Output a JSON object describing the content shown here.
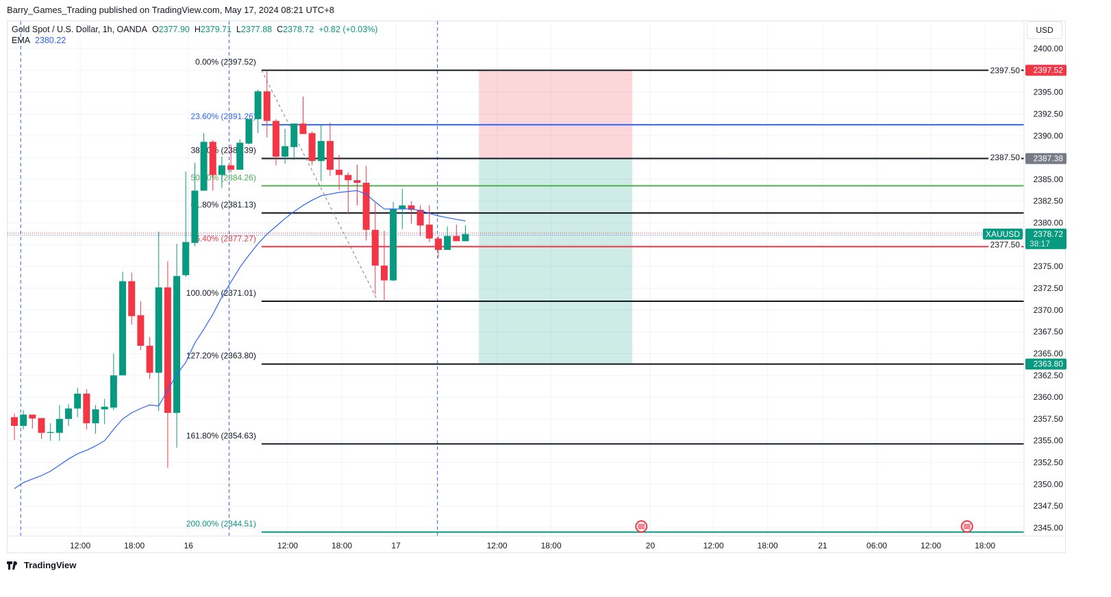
{
  "publisher": "Barry_Games_Trading published on TradingView.com, May 17, 2024 08:21 UTC+8",
  "legend": {
    "symbol": "Gold Spot / U.S. Dollar, 1h, OANDA",
    "o_label": "O",
    "o": "2377.90",
    "h_label": "H",
    "h": "2379.71",
    "l_label": "L",
    "l": "2377.88",
    "c_label": "C",
    "c": "2378.72",
    "change": "+0.82 (+0.03%)",
    "ema_label": "EMA",
    "ema": "2380.22"
  },
  "currency": "USD",
  "footer": "TradingView",
  "colors": {
    "up": "#089981",
    "down": "#f23645",
    "ema": "#2962ff",
    "grid": "#f0f3fa"
  },
  "chart_data": {
    "type": "candlestick",
    "title": "Gold Spot / U.S. Dollar, 1h, OANDA",
    "ylim": [
      2343,
      2403
    ],
    "price_ticks": [
      "2400.00",
      "2397.50",
      "2395.00",
      "2392.50",
      "2390.00",
      "2387.50",
      "2385.00",
      "2382.50",
      "2380.00",
      "2377.50",
      "2375.00",
      "2372.50",
      "2370.00",
      "2367.50",
      "2365.00",
      "2362.50",
      "2360.00",
      "2357.50",
      "2355.00",
      "2352.50",
      "2350.00",
      "2347.50",
      "2345.00"
    ],
    "time_ticks": [
      {
        "label": "12:00",
        "bar": 7.3
      },
      {
        "label": "18:00",
        "bar": 13.3
      },
      {
        "label": "16",
        "bar": 19.3
      },
      {
        "label": "12:00",
        "bar": 30.3
      },
      {
        "label": "18:00",
        "bar": 36.3
      },
      {
        "label": "17",
        "bar": 42.3
      },
      {
        "label": "12:00",
        "bar": 53.5
      },
      {
        "label": "18:00",
        "bar": 59.5
      },
      {
        "label": "20",
        "bar": 70.5
      },
      {
        "label": "12:00",
        "bar": 77.5
      },
      {
        "label": "18:00",
        "bar": 83.5
      },
      {
        "label": "21",
        "bar": 89.6
      },
      {
        "label": "06:00",
        "bar": 95.6
      },
      {
        "label": "12:00",
        "bar": 101.6
      },
      {
        "label": "18:00",
        "bar": 107.6
      }
    ],
    "candles": [
      [
        2357.7,
        2358.1,
        2355.1,
        2356.7
      ],
      [
        2356.7,
        2358.5,
        2356.3,
        2358.0
      ],
      [
        2358.0,
        2358.0,
        2356.4,
        2357.55
      ],
      [
        2357.6,
        2357.6,
        2355.2,
        2355.9
      ],
      [
        2355.9,
        2357.0,
        2355.0,
        2356.0
      ],
      [
        2355.9,
        2359.1,
        2355.0,
        2357.5
      ],
      [
        2357.5,
        2359.2,
        2356.7,
        2358.7
      ],
      [
        2358.7,
        2361.1,
        2357.7,
        2360.4
      ],
      [
        2360.4,
        2360.9,
        2356.3,
        2357.0
      ],
      [
        2357.0,
        2359.1,
        2355.8,
        2358.6
      ],
      [
        2358.6,
        2359.8,
        2356.9,
        2358.9
      ],
      [
        2358.8,
        2365.0,
        2358.5,
        2362.5
      ],
      [
        2362.5,
        2374.4,
        2362.5,
        2373.3
      ],
      [
        2373.3,
        2374.3,
        2368.3,
        2369.3
      ],
      [
        2369.4,
        2371.0,
        2365.4,
        2365.9
      ],
      [
        2365.9,
        2366.9,
        2362.1,
        2362.8
      ],
      [
        2362.8,
        2379.0,
        2358.4,
        2372.6
      ],
      [
        2372.6,
        2375.6,
        2351.9,
        2358.2
      ],
      [
        2358.2,
        2377.6,
        2354.2,
        2373.9
      ],
      [
        2374.0,
        2385.9,
        2373.8,
        2377.8
      ],
      [
        2377.7,
        2386.9,
        2377.3,
        2383.7
      ],
      [
        2383.7,
        2390.3,
        2383.7,
        2389.3
      ],
      [
        2389.3,
        2389.5,
        2383.7,
        2385.5
      ],
      [
        2385.5,
        2387.6,
        2384.0,
        2386.6
      ],
      [
        2386.6,
        2389.0,
        2385.8,
        2386.1
      ],
      [
        2386.1,
        2389.6,
        2386.1,
        2389.2
      ],
      [
        2389.1,
        2391.9,
        2389.0,
        2391.9
      ],
      [
        2391.9,
        2395.3,
        2390.3,
        2395.1
      ],
      [
        2395.1,
        2397.52,
        2389.8,
        2391.7
      ],
      [
        2391.7,
        2391.9,
        2386.6,
        2387.6
      ],
      [
        2387.6,
        2390.8,
        2386.8,
        2388.8
      ],
      [
        2388.7,
        2391.4,
        2387.2,
        2391.4
      ],
      [
        2391.4,
        2394.5,
        2390.2,
        2390.2
      ],
      [
        2390.3,
        2390.5,
        2386.6,
        2387.1
      ],
      [
        2387.1,
        2391.2,
        2384.8,
        2389.4
      ],
      [
        2389.4,
        2391.5,
        2385.4,
        2386.1
      ],
      [
        2386.1,
        2387.8,
        2383.8,
        2385.5
      ],
      [
        2385.5,
        2385.8,
        2381.0,
        2384.9
      ],
      [
        2384.9,
        2386.7,
        2382.0,
        2384.6
      ],
      [
        2384.6,
        2386.5,
        2377.96,
        2379.2
      ],
      [
        2379.2,
        2382.3,
        2371.8,
        2375.1
      ],
      [
        2375.1,
        2379.1,
        2371.01,
        2373.4
      ],
      [
        2373.4,
        2382.4,
        2373.3,
        2381.6
      ],
      [
        2381.6,
        2383.9,
        2379.3,
        2382.0
      ],
      [
        2382.0,
        2382.5,
        2379.9,
        2381.5
      ],
      [
        2381.5,
        2382.0,
        2378.5,
        2379.7
      ],
      [
        2379.8,
        2382.0,
        2377.8,
        2378.2
      ],
      [
        2378.2,
        2378.5,
        2376.0,
        2376.9
      ],
      [
        2376.9,
        2379.6,
        2376.9,
        2378.5
      ],
      [
        2378.5,
        2379.8,
        2377.9,
        2377.9
      ],
      [
        2377.9,
        2379.71,
        2377.88,
        2378.72
      ]
    ],
    "ema": [
      2349.5,
      2350.2,
      2350.6,
      2351.0,
      2351.5,
      2352.2,
      2352.9,
      2353.5,
      2353.9,
      2354.4,
      2355.0,
      2356.3,
      2357.5,
      2358.2,
      2358.7,
      2359.1,
      2359.0,
      2360.8,
      2362.6,
      2364.0,
      2366.2,
      2367.8,
      2369.5,
      2371.5,
      2373.2,
      2374.9,
      2376.3,
      2377.6,
      2378.7,
      2379.6,
      2380.5,
      2381.3,
      2382.0,
      2382.6,
      2383.1,
      2383.3,
      2383.5,
      2383.6,
      2383.7,
      2383.3,
      2382.4,
      2381.6,
      2381.6,
      2381.6,
      2381.6,
      2381.4,
      2381.1,
      2380.8,
      2380.6,
      2380.4,
      2380.22
    ],
    "fib_levels": [
      {
        "label": "0.00% (2397.52)",
        "price": 2397.52,
        "color": "#131722"
      },
      {
        "label": "23.60% (2391.26)",
        "price": 2391.26,
        "color": "#2962ff"
      },
      {
        "label": "38.20% (2387.39)",
        "price": 2387.39,
        "color": "#131722"
      },
      {
        "label": "50.00% (2384.26)",
        "price": 2384.26,
        "color": "#4caf50"
      },
      {
        "label": "61.80% (2381.13)",
        "price": 2381.13,
        "color": "#131722"
      },
      {
        "label": "76.40% (2377.27)",
        "price": 2377.27,
        "color": "#f23645"
      },
      {
        "label": "100.00% (2371.01)",
        "price": 2371.01,
        "color": "#131722"
      },
      {
        "label": "127.20% (2363.80)",
        "price": 2363.8,
        "color": "#131722"
      },
      {
        "label": "161.80% (2354.63)",
        "price": 2354.63,
        "color": "#131722"
      },
      {
        "label": "200.00% (2344.51)",
        "price": 2344.51,
        "color": "#089981"
      }
    ],
    "fib_start_bar": 27.4,
    "trend_line": {
      "from": {
        "bar": 27.4,
        "price": 2397.52
      },
      "to": {
        "bar": 40.3,
        "price": 2371.01
      }
    },
    "vertical_markers_bars": [
      0.7,
      23.8,
      46.9
    ],
    "position": {
      "start_bar": 51.5,
      "end_bar": 68.5,
      "stop": 2397.52,
      "entry": 2387.38,
      "target": 2363.8
    },
    "axis_labels": [
      {
        "text": "2397.52",
        "price": 2397.52,
        "bg": "#f23645"
      },
      {
        "text": "2387.38",
        "price": 2387.38,
        "bg": "#787b86"
      },
      {
        "text": "2363.80",
        "price": 2363.8,
        "bg": "#089981"
      }
    ],
    "last_price": {
      "symbol": "XAUUSD",
      "price": "2378.72",
      "countdown": "38:17",
      "value": 2378.72
    },
    "events_bars": [
      69.5,
      105.6
    ]
  }
}
